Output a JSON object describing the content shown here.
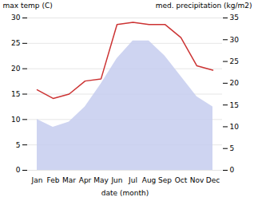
{
  "chart_data": {
    "type": "area",
    "xlabel": "date (month)",
    "ylabel": "max temp (C)",
    "y2label": "med. precipitation (kg/m2)",
    "categories": [
      "Jan",
      "Feb",
      "Mar",
      "Apr",
      "May",
      "Jun",
      "Jul",
      "Aug",
      "Sep",
      "Oct",
      "Nov",
      "Dec"
    ],
    "series": [
      {
        "type": "area",
        "color": "#c5ccee",
        "values": [
          10.0,
          8.5,
          9.5,
          12.5,
          17.0,
          22.0,
          25.5,
          25.5,
          22.5,
          18.5,
          14.5,
          12.5
        ]
      },
      {
        "type": "line",
        "color": "#cc3333",
        "axis": "y2",
        "values": [
          18.5,
          16.5,
          17.5,
          20.5,
          21.0,
          33.5,
          34.0,
          33.5,
          33.5,
          30.5,
          24.0,
          23.0
        ]
      }
    ],
    "ylim": [
      0,
      30
    ],
    "yticks": [
      0,
      5,
      10,
      15,
      20,
      25,
      30
    ],
    "y2lim": [
      0,
      35
    ],
    "y2ticks": [
      0,
      5,
      10,
      15,
      20,
      25,
      30,
      35
    ],
    "grid": true
  }
}
